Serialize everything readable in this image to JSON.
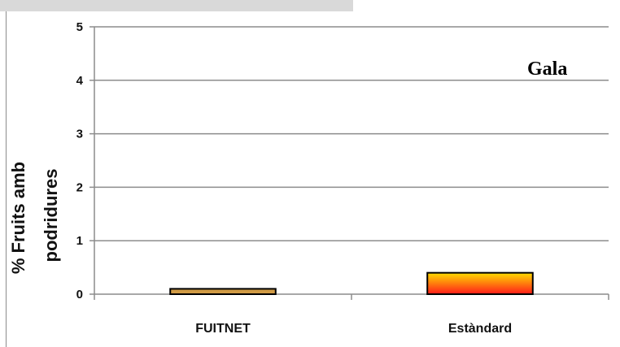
{
  "chart_data": {
    "type": "bar",
    "categories": [
      "FUITNET",
      "Estàndard"
    ],
    "values": [
      0.1,
      0.4
    ],
    "ylim": [
      0,
      5
    ],
    "yticks": [
      "0",
      "1",
      "2",
      "3",
      "4",
      "5"
    ],
    "ylabel_lines": [
      "% Fruits amb",
      "podridures"
    ],
    "annotation": "Gala",
    "grid": true,
    "colors": {
      "fuitnet": "#d09a45",
      "standard_top": "#ffdd00",
      "standard_bottom": "#ff1a1a",
      "gridline": "#8c8c8c",
      "bar_border": "#000000"
    }
  }
}
